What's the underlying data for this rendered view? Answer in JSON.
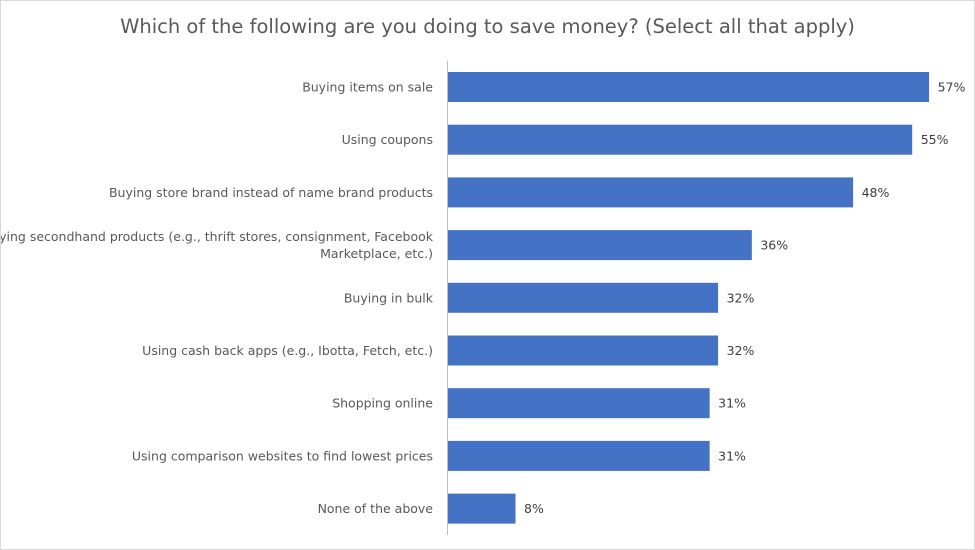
{
  "chart_data": {
    "type": "bar",
    "orientation": "horizontal",
    "title": "Which of the following are you doing to save money? (Select all that apply)",
    "xlabel": "",
    "ylabel": "",
    "xlim": [
      0,
      60
    ],
    "grid": false,
    "legend": "none",
    "bar_color": "#4472C4",
    "categories": [
      [
        "Buying items on sale"
      ],
      [
        "Using coupons"
      ],
      [
        "Buying store brand instead of name brand products"
      ],
      [
        "Buying secondhand products (e.g., thrift stores, consignment, Facebook",
        "Marketplace, etc.)"
      ],
      [
        "Buying in bulk"
      ],
      [
        "Using cash back apps (e.g., Ibotta, Fetch, etc.)"
      ],
      [
        "Shopping online"
      ],
      [
        "Using comparison websites to find lowest prices"
      ],
      [
        "None of the above"
      ]
    ],
    "values": [
      57,
      55,
      48,
      36,
      32,
      32,
      31,
      31,
      8
    ],
    "value_labels": [
      "57%",
      "55%",
      "48%",
      "36%",
      "32%",
      "32%",
      "31%",
      "31%",
      "8%"
    ]
  }
}
